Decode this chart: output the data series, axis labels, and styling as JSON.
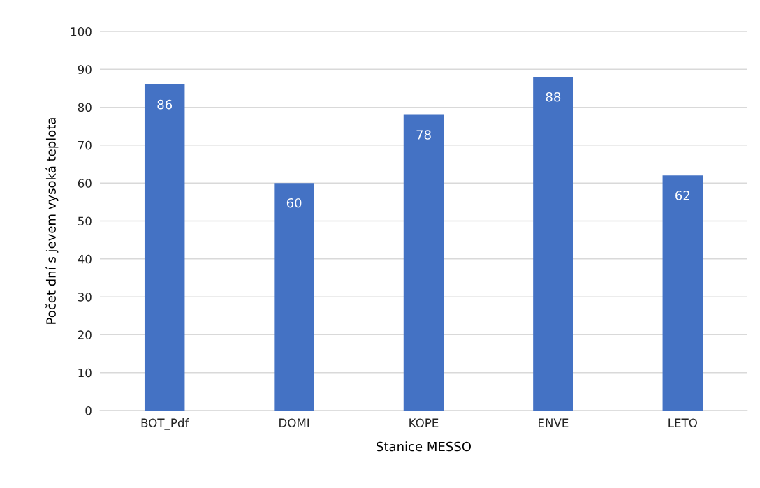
{
  "chart_data": {
    "type": "bar",
    "xlabel": "Stanice MESSO",
    "ylabel": "Počet dní s jevem vysoká teplota",
    "categories": [
      "BOT_Pdf",
      "DOMI",
      "KOPE",
      "ENVE",
      "LETO"
    ],
    "values": [
      86,
      60,
      78,
      88,
      62
    ],
    "color": "#4472c4",
    "ylim": [
      0,
      100
    ],
    "yticks": [
      0,
      10,
      20,
      30,
      40,
      50,
      60,
      70,
      80,
      90,
      100
    ],
    "grid": "y",
    "data_labels": true
  }
}
